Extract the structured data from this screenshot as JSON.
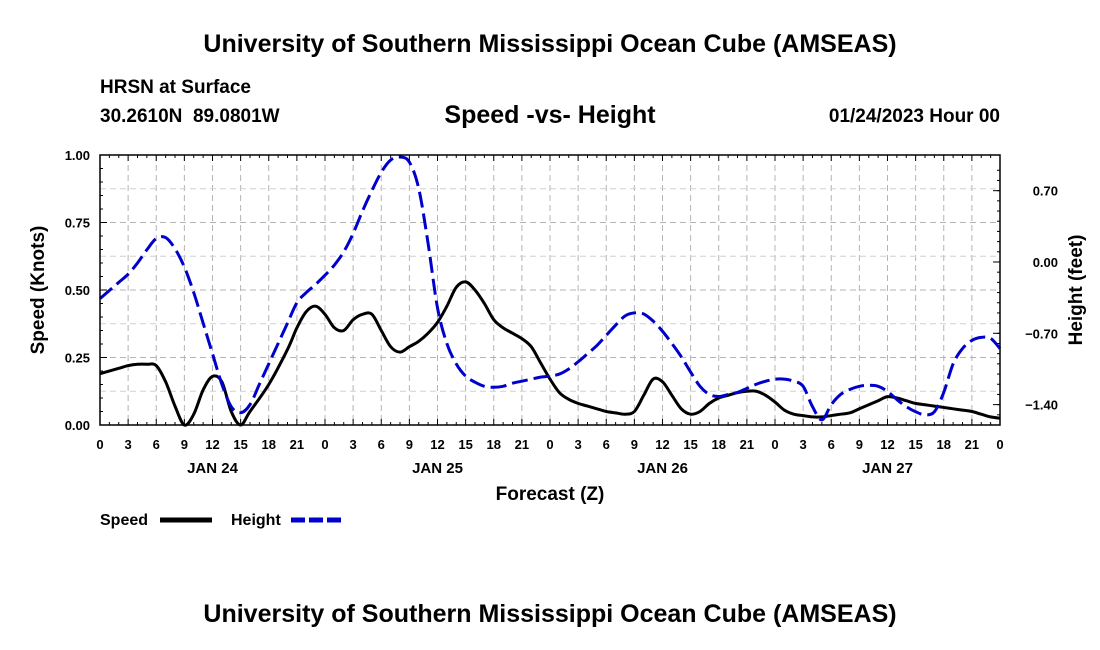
{
  "header": {
    "title": "University of Southern Mississippi Ocean Cube (AMSEAS)",
    "station": "HRSN at Surface",
    "coords": "30.2610N  89.0801W",
    "date_hour": "01/24/2023 Hour 00"
  },
  "footer": {
    "title": "University of Southern Mississippi Ocean Cube (AMSEAS)"
  },
  "chart_data": {
    "type": "line",
    "title": "Speed -vs- Height",
    "xlabel": "Forecast (Z)",
    "ylabel": "Speed (Knots)",
    "y2label": "Height (feet)",
    "grid": true,
    "xlim": [
      0,
      96
    ],
    "ylim": [
      0,
      1.0
    ],
    "y2lim": [
      -1.6,
      1.05
    ],
    "x_ticks": [
      0,
      3,
      6,
      9,
      12,
      15,
      18,
      21,
      24,
      27,
      30,
      33,
      36,
      39,
      42,
      45,
      48,
      51,
      54,
      57,
      60,
      63,
      66,
      69,
      72,
      75,
      78,
      81,
      84,
      87,
      90,
      93,
      96
    ],
    "x_tick_labels": [
      "0",
      "3",
      "6",
      "9",
      "12",
      "15",
      "18",
      "21",
      "0",
      "3",
      "6",
      "9",
      "12",
      "15",
      "18",
      "21",
      "0",
      "3",
      "6",
      "9",
      "12",
      "15",
      "18",
      "21",
      "0",
      "3",
      "6",
      "9",
      "12",
      "15",
      "18",
      "21",
      "0"
    ],
    "day_labels": [
      {
        "x": 12,
        "label": "JAN 24"
      },
      {
        "x": 36,
        "label": "JAN 25"
      },
      {
        "x": 60,
        "label": "JAN 26"
      },
      {
        "x": 84,
        "label": "JAN 27"
      }
    ],
    "y_ticks": [
      0,
      0.25,
      0.5,
      0.75,
      1.0
    ],
    "y_tick_labels": [
      "0.00",
      "0.25",
      "0.50",
      "0.75",
      "1.00"
    ],
    "y2_ticks": [
      0.7,
      0.0,
      -0.7,
      -1.4
    ],
    "y2_tick_labels": [
      "0.70",
      "0.00",
      "−0.70",
      "−1.40"
    ],
    "series": [
      {
        "name": "Speed",
        "axis": "left",
        "color": "#000000",
        "dash": "solid",
        "x": [
          0,
          2,
          3,
          4,
          5,
          6,
          7,
          8,
          9,
          10,
          11,
          12,
          13,
          14,
          15,
          16,
          18,
          20,
          21,
          22,
          23,
          24,
          25,
          26,
          27,
          28,
          29,
          30,
          31,
          32,
          33,
          34,
          35,
          36,
          37,
          38,
          39,
          40,
          41,
          42,
          43,
          44,
          45,
          46,
          47,
          48,
          49,
          50,
          51,
          52,
          53,
          54,
          55,
          56,
          57,
          58,
          59,
          60,
          61,
          62,
          63,
          64,
          65,
          66,
          67,
          68,
          69,
          70,
          71,
          72,
          73,
          74,
          75,
          76,
          77,
          78,
          79,
          80,
          81,
          82,
          83,
          84,
          85,
          86,
          87,
          88,
          89,
          90,
          91,
          92,
          93,
          94,
          95,
          96
        ],
        "y": [
          0.19,
          0.21,
          0.22,
          0.225,
          0.225,
          0.22,
          0.16,
          0.07,
          0.0,
          0.04,
          0.13,
          0.18,
          0.16,
          0.05,
          0.0,
          0.05,
          0.15,
          0.28,
          0.36,
          0.42,
          0.44,
          0.41,
          0.36,
          0.35,
          0.39,
          0.41,
          0.41,
          0.35,
          0.29,
          0.27,
          0.29,
          0.31,
          0.34,
          0.38,
          0.44,
          0.51,
          0.53,
          0.5,
          0.45,
          0.39,
          0.36,
          0.34,
          0.32,
          0.29,
          0.23,
          0.17,
          0.12,
          0.095,
          0.08,
          0.07,
          0.06,
          0.05,
          0.045,
          0.04,
          0.05,
          0.11,
          0.17,
          0.16,
          0.11,
          0.06,
          0.04,
          0.05,
          0.08,
          0.1,
          0.11,
          0.12,
          0.125,
          0.125,
          0.11,
          0.085,
          0.055,
          0.04,
          0.035,
          0.03,
          0.03,
          0.035,
          0.04,
          0.045,
          0.06,
          0.075,
          0.09,
          0.105,
          0.1,
          0.09,
          0.08,
          0.075,
          0.07,
          0.065,
          0.06,
          0.055,
          0.05,
          0.04,
          0.03,
          0.025
        ]
      },
      {
        "name": "Height",
        "axis": "right",
        "color": "#0000cc",
        "dash": "dashed",
        "x": [
          0,
          1,
          2,
          3,
          4,
          5,
          6,
          7,
          8,
          9,
          10,
          11,
          12,
          13,
          14,
          15,
          16,
          17,
          18,
          19,
          20,
          21,
          22,
          23,
          24,
          25,
          26,
          27,
          28,
          29,
          30,
          31,
          32,
          33,
          34,
          35,
          36,
          37,
          38,
          39,
          40,
          41,
          42,
          43,
          44,
          45,
          46,
          47,
          48,
          49,
          50,
          51,
          52,
          53,
          54,
          55,
          56,
          57,
          58,
          59,
          60,
          61,
          62,
          63,
          64,
          65,
          66,
          67,
          68,
          69,
          70,
          71,
          72,
          73,
          74,
          75,
          76,
          77,
          78,
          79,
          80,
          81,
          82,
          83,
          84,
          85,
          86,
          87,
          88,
          89,
          90,
          91,
          92,
          93,
          94,
          95,
          96
        ],
        "y": [
          -0.36,
          -0.28,
          -0.2,
          -0.12,
          -0.01,
          0.12,
          0.23,
          0.24,
          0.13,
          -0.05,
          -0.3,
          -0.6,
          -0.9,
          -1.2,
          -1.42,
          -1.48,
          -1.4,
          -1.2,
          -1.0,
          -0.8,
          -0.6,
          -0.4,
          -0.3,
          -0.22,
          -0.13,
          -0.03,
          0.1,
          0.28,
          0.5,
          0.7,
          0.88,
          1.0,
          1.03,
          0.98,
          0.72,
          0.18,
          -0.45,
          -0.8,
          -1.0,
          -1.12,
          -1.18,
          -1.22,
          -1.23,
          -1.22,
          -1.19,
          -1.17,
          -1.15,
          -1.13,
          -1.12,
          -1.1,
          -1.05,
          -0.98,
          -0.9,
          -0.82,
          -0.72,
          -0.62,
          -0.53,
          -0.5,
          -0.51,
          -0.58,
          -0.68,
          -0.8,
          -0.93,
          -1.08,
          -1.22,
          -1.3,
          -1.32,
          -1.3,
          -1.28,
          -1.24,
          -1.2,
          -1.17,
          -1.15,
          -1.15,
          -1.17,
          -1.22,
          -1.42,
          -1.55,
          -1.4,
          -1.3,
          -1.25,
          -1.22,
          -1.21,
          -1.22,
          -1.27,
          -1.35,
          -1.42,
          -1.47,
          -1.5,
          -1.47,
          -1.28,
          -1.0,
          -0.85,
          -0.77,
          -0.74,
          -0.75,
          -0.85
        ]
      }
    ]
  },
  "legend": {
    "speed_label": "Speed",
    "height_label": "Height"
  }
}
